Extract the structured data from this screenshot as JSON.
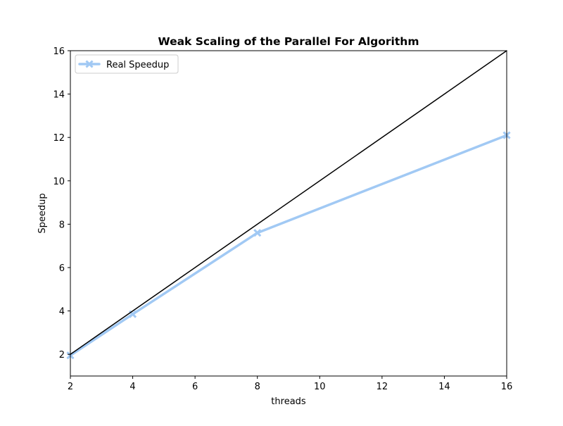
{
  "chart_data": {
    "type": "line",
    "title": "Weak Scaling of the Parallel For Algorithm",
    "xlabel": "threads",
    "ylabel": "Speedup",
    "xlim": [
      2,
      16
    ],
    "ylim": [
      1,
      16
    ],
    "xticks": [
      2,
      4,
      6,
      8,
      10,
      12,
      14,
      16
    ],
    "yticks": [
      2,
      4,
      6,
      8,
      10,
      12,
      14,
      16
    ],
    "grid": false,
    "legend_position": "top-left",
    "series": [
      {
        "name": "Real Speedup",
        "x": [
          2,
          4,
          8,
          16
        ],
        "y": [
          1.95,
          3.85,
          7.6,
          12.1
        ],
        "color": "#a1c9f4",
        "marker": "x"
      },
      {
        "x": [
          2,
          16
        ],
        "y": [
          2,
          16
        ],
        "color": "#000000",
        "marker": "none"
      }
    ]
  }
}
